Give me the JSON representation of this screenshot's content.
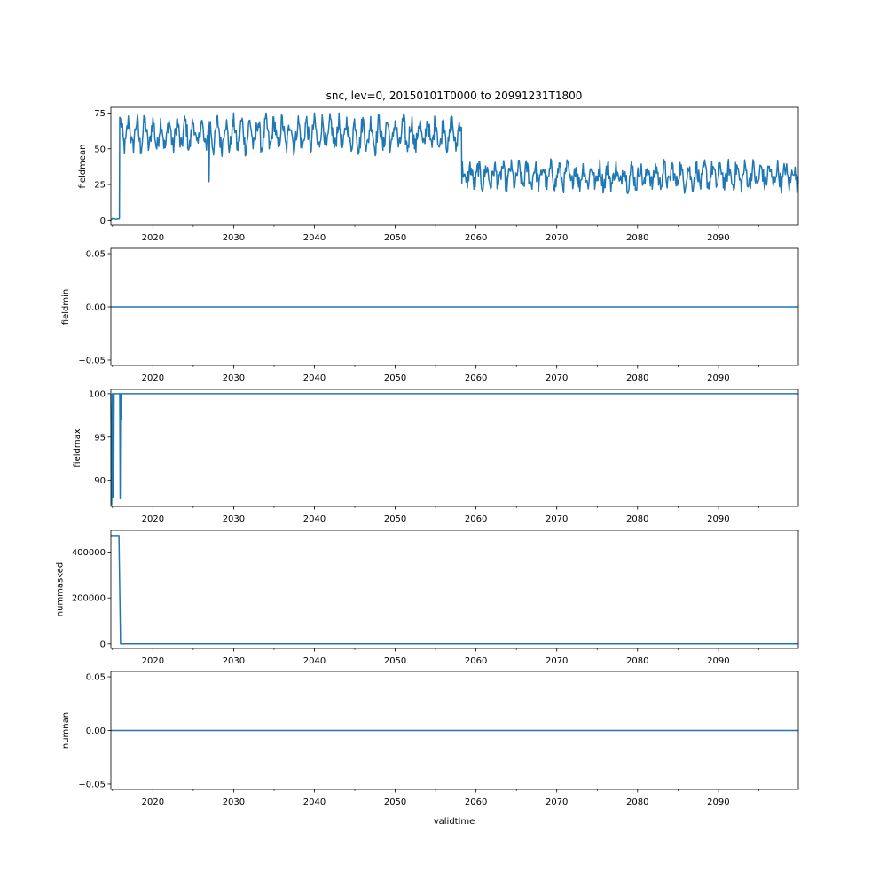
{
  "title": "snc, lev=0, 20150101T0000 to 20991231T1800",
  "xlabel": "validtime",
  "line_color": "#1f77b4",
  "chart_data": [
    {
      "type": "line",
      "ylabel": "fieldmean",
      "xlim": [
        2014.8,
        2099.9
      ],
      "ylim": [
        -3.5,
        79
      ],
      "yticks": [
        0,
        25,
        50,
        75
      ],
      "ytick_labels": [
        "0",
        "25",
        "50",
        "75"
      ],
      "xticks": [
        2020,
        2030,
        2040,
        2050,
        2060,
        2070,
        2080,
        2090
      ],
      "xtick_labels": [
        "2020",
        "2030",
        "2040",
        "2050",
        "2060",
        "2070",
        "2080",
        "2090"
      ],
      "series": [
        {
          "x": [
            2014.8,
            2015.0,
            2015.3,
            2015.6,
            2015.8,
            2015.9,
            2016.0,
            2026.9,
            2027.0,
            2027.1,
            2058.2,
            2058.3,
            2099.9
          ],
          "y": [
            0,
            1,
            1,
            1,
            1,
            72,
            65,
            65,
            27,
            65,
            65,
            30,
            30
          ]
        }
      ],
      "annotations": [
        "seasonal oscillation approx. 45-75 from 2016 to 2058",
        "seasonal oscillation approx. 18-43 from 2058 to 2099"
      ]
    },
    {
      "type": "line",
      "ylabel": "fieldmin",
      "xlim": [
        2014.8,
        2099.9
      ],
      "ylim": [
        -0.055,
        0.055
      ],
      "yticks": [
        -0.05,
        0,
        0.05
      ],
      "ytick_labels": [
        "−0.05",
        "0.00",
        "0.05"
      ],
      "xticks": [
        2020,
        2030,
        2040,
        2050,
        2060,
        2070,
        2080,
        2090
      ],
      "xtick_labels": [
        "2020",
        "2030",
        "2040",
        "2050",
        "2060",
        "2070",
        "2080",
        "2090"
      ],
      "series": [
        {
          "x": [
            2014.8,
            2099.9
          ],
          "y": [
            0,
            0
          ]
        }
      ]
    },
    {
      "type": "line",
      "ylabel": "fieldmax",
      "xlim": [
        2014.8,
        2099.9
      ],
      "ylim": [
        87,
        100.5
      ],
      "yticks": [
        90,
        95,
        100
      ],
      "ytick_labels": [
        "90",
        "95",
        "100"
      ],
      "xticks": [
        2020,
        2030,
        2040,
        2050,
        2060,
        2070,
        2080,
        2090
      ],
      "xtick_labels": [
        "2020",
        "2030",
        "2040",
        "2050",
        "2060",
        "2070",
        "2080",
        "2090"
      ],
      "series": [
        {
          "x": [
            2014.8,
            2014.9,
            2015.0,
            2015.05,
            2015.1,
            2015.15,
            2015.2,
            2015.9,
            2015.95,
            2016.0,
            2016.05,
            2016.1,
            2099.9
          ],
          "y": [
            100,
            87.2,
            100,
            88,
            100,
            89,
            100,
            100,
            87.9,
            100,
            97,
            100,
            100
          ]
        }
      ]
    },
    {
      "type": "line",
      "ylabel": "nummasked",
      "xlim": [
        2014.8,
        2099.9
      ],
      "ylim": [
        -20000,
        495000
      ],
      "yticks": [
        0,
        200000,
        400000
      ],
      "ytick_labels": [
        "0",
        "200000",
        "400000"
      ],
      "xticks": [
        2020,
        2030,
        2040,
        2050,
        2060,
        2070,
        2080,
        2090
      ],
      "xtick_labels": [
        "2020",
        "2030",
        "2040",
        "2050",
        "2060",
        "2070",
        "2080",
        "2090"
      ],
      "series": [
        {
          "x": [
            2014.8,
            2015.8,
            2016.0,
            2099.9
          ],
          "y": [
            472000,
            472000,
            0,
            0
          ]
        }
      ]
    },
    {
      "type": "line",
      "ylabel": "numnan",
      "xlim": [
        2014.8,
        2099.9
      ],
      "ylim": [
        -0.055,
        0.055
      ],
      "yticks": [
        -0.05,
        0,
        0.05
      ],
      "ytick_labels": [
        "−0.05",
        "0.00",
        "0.05"
      ],
      "xticks": [
        2020,
        2030,
        2040,
        2050,
        2060,
        2070,
        2080,
        2090
      ],
      "xtick_labels": [
        "2020",
        "2030",
        "2040",
        "2050",
        "2060",
        "2070",
        "2080",
        "2090"
      ],
      "series": [
        {
          "x": [
            2014.8,
            2099.9
          ],
          "y": [
            0,
            0
          ]
        }
      ]
    }
  ]
}
